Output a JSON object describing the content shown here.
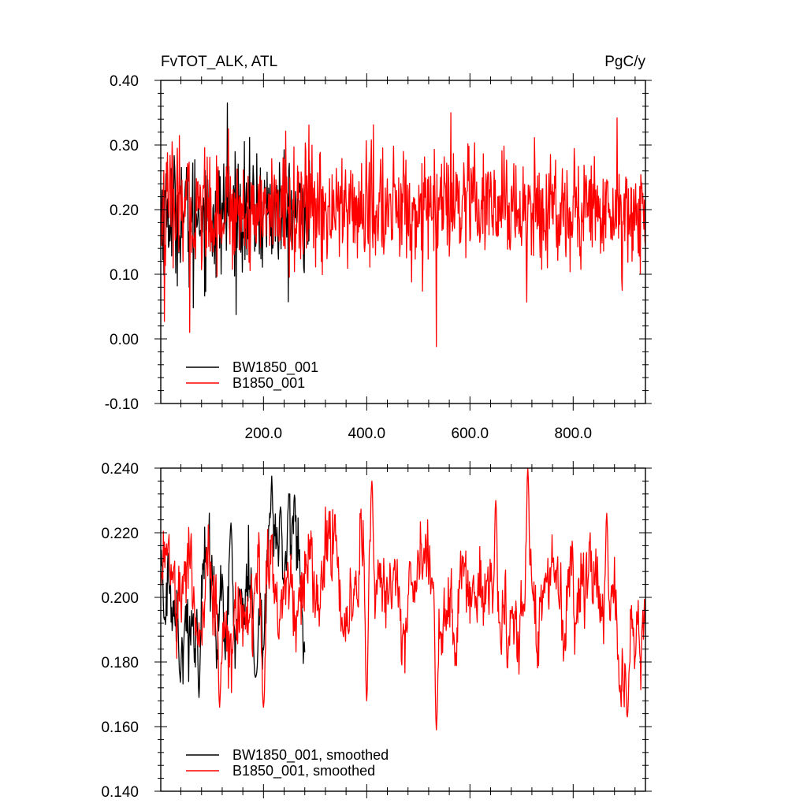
{
  "chart_data": [
    {
      "type": "line",
      "title_left": "FvTOT_ALK, ATL",
      "title_right": "PgC/y",
      "xlim": [
        1,
        940
      ],
      "ylim": [
        -0.1,
        0.4
      ],
      "x_ticks": [
        200,
        400,
        600,
        800
      ],
      "x_tick_labels": [
        "200.0",
        "400.0",
        "600.0",
        "800.0"
      ],
      "y_ticks": [
        -0.1,
        0.0,
        0.1,
        0.2,
        0.3,
        0.4
      ],
      "y_tick_labels": [
        "-0.10",
        "0.00",
        "0.10",
        "0.20",
        "0.30",
        "0.40"
      ],
      "legend_position": "bottom-left",
      "series": [
        {
          "name": "BW1850_001",
          "color": "#000000",
          "length": 290,
          "mean": 0.195,
          "std": 0.045,
          "peaks": [
            [
              130,
              0.365
            ],
            [
              64,
              0.048
            ],
            [
              56,
              0.08
            ],
            [
              108,
              0.095
            ],
            [
              292,
              0.085
            ]
          ]
        },
        {
          "name": "B1850_001",
          "color": "#ff0000",
          "length": 940,
          "mean": 0.2,
          "std": 0.045,
          "peaks": [
            [
              57,
              0.01
            ],
            [
              8,
              0.027
            ],
            [
              535,
              -0.012
            ],
            [
              563,
              0.35
            ],
            [
              710,
              0.057
            ],
            [
              895,
              0.075
            ],
            [
              885,
              0.342
            ],
            [
              132,
              0.325
            ]
          ]
        }
      ]
    },
    {
      "type": "line",
      "xlim": [
        1,
        940
      ],
      "ylim": [
        0.14,
        0.24
      ],
      "y_ticks": [
        0.14,
        0.16,
        0.18,
        0.2,
        0.22,
        0.24
      ],
      "y_tick_labels": [
        "0.140",
        "0.160",
        "0.180",
        "0.200",
        "0.220",
        "0.240"
      ],
      "legend_position": "bottom-left",
      "series": [
        {
          "name": "BW1850_001, smoothed",
          "color": "#000000",
          "length": 280,
          "mean": 0.2,
          "std": 0.011,
          "peaks": [
            [
              137,
              0.223
            ],
            [
              233,
              0.228
            ],
            [
              75,
              0.169
            ],
            [
              186,
              0.176
            ]
          ]
        },
        {
          "name": "B1850_001, smoothed",
          "color": "#ff0000",
          "length": 940,
          "mean": 0.198,
          "std": 0.011,
          "peaks": [
            [
              410,
              0.236
            ],
            [
              712,
              0.24
            ],
            [
              535,
              0.159
            ],
            [
              115,
              0.166
            ],
            [
              200,
              0.166
            ],
            [
              400,
              0.168
            ],
            [
              905,
              0.163
            ],
            [
              650,
              0.23
            ],
            [
              865,
              0.226
            ]
          ]
        }
      ]
    }
  ]
}
